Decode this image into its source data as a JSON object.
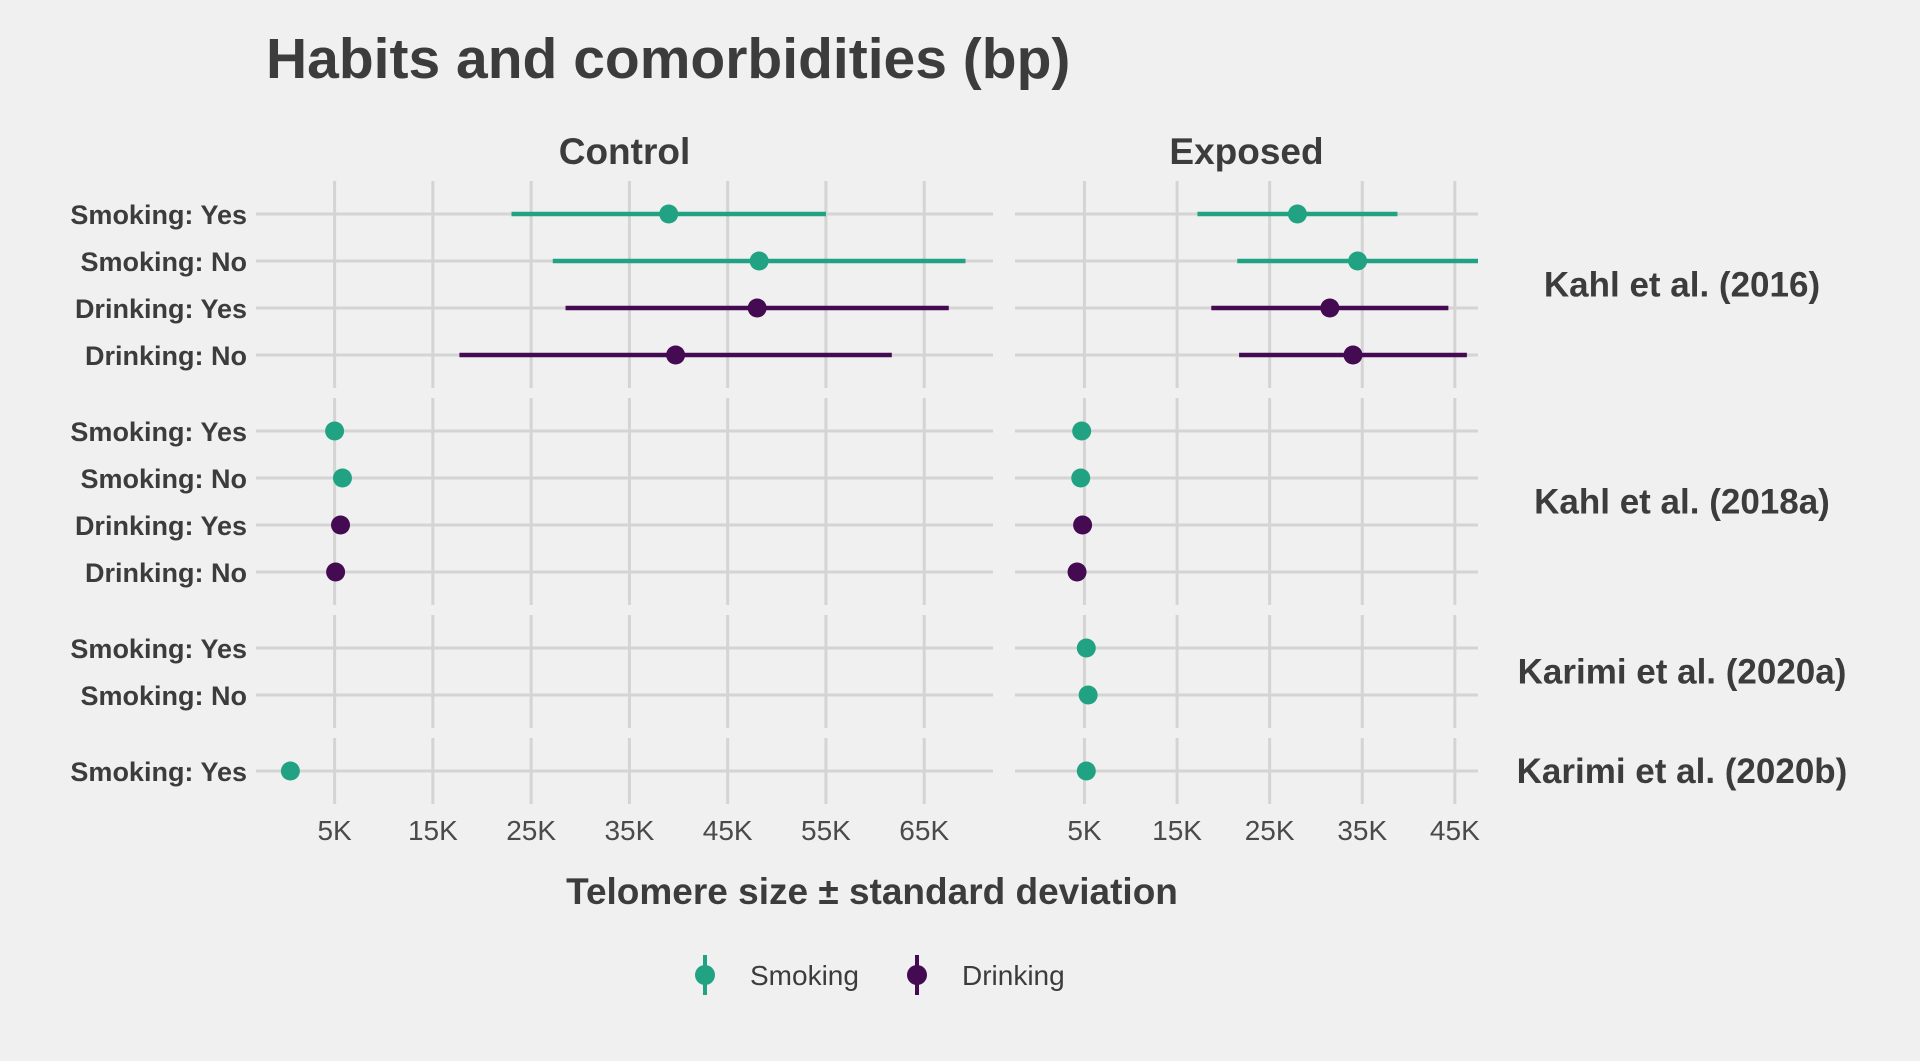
{
  "chart_data": {
    "type": "scatter",
    "subtype": "point-range (dot and whisker), faceted",
    "title": "Habits and comorbidities (bp)",
    "xlabel": "Telomere size ± standard deviation",
    "ylabel": "",
    "column_facets": [
      "Control",
      "Exposed"
    ],
    "row_facets": [
      "Kahl et al. (2016)",
      "Kahl et al. (2018a)",
      "Karimi et al. (2020a)",
      "Karimi et al. (2020b)"
    ],
    "x_ticks": {
      "Control": {
        "values": [
          5000,
          15000,
          25000,
          35000,
          45000,
          55000,
          65000
        ],
        "labels": [
          "5K",
          "15K",
          "25K",
          "35K",
          "45K",
          "55K",
          "65K"
        ]
      },
      "Exposed": {
        "values": [
          5000,
          15000,
          25000,
          35000,
          45000
        ],
        "labels": [
          "5K",
          "15K",
          "25K",
          "35K",
          "45K"
        ]
      }
    },
    "xlim": {
      "Control": [
        -3000,
        72000
      ],
      "Exposed": [
        -2500,
        47500
      ]
    },
    "grid": true,
    "legend": {
      "position": "bottom",
      "entries": [
        {
          "name": "Smoking",
          "color": "#21a383"
        },
        {
          "name": "Drinking",
          "color": "#440a52"
        }
      ]
    },
    "series_colors": {
      "Smoking": "#21a383",
      "Drinking": "#440a52"
    },
    "panels": [
      {
        "study": "Kahl et al. (2016)",
        "categories": [
          "Smoking: Yes",
          "Smoking: No",
          "Drinking: Yes",
          "Drinking: No"
        ],
        "groups": [
          "Smoking",
          "Smoking",
          "Drinking",
          "Drinking"
        ],
        "Control": {
          "mean": [
            39000,
            48200,
            48000,
            39700
          ],
          "sd": [
            16000,
            21000,
            19500,
            22000
          ]
        },
        "Exposed": {
          "mean": [
            28000,
            34500,
            31500,
            34000
          ],
          "sd": [
            10800,
            13000,
            12800,
            12300
          ]
        }
      },
      {
        "study": "Kahl et al. (2018a)",
        "categories": [
          "Smoking: Yes",
          "Smoking: No",
          "Drinking: Yes",
          "Drinking: No"
        ],
        "groups": [
          "Smoking",
          "Smoking",
          "Drinking",
          "Drinking"
        ],
        "Control": {
          "mean": [
            5000,
            5800,
            5600,
            5100
          ],
          "sd": [
            0,
            0,
            0,
            0
          ]
        },
        "Exposed": {
          "mean": [
            4700,
            4600,
            4800,
            4200
          ],
          "sd": [
            0,
            0,
            0,
            0
          ]
        }
      },
      {
        "study": "Karimi et al. (2020a)",
        "categories": [
          "Smoking: Yes",
          "Smoking: No"
        ],
        "groups": [
          "Smoking",
          "Smoking"
        ],
        "Control": {
          "mean": [
            null,
            null
          ],
          "sd": [
            null,
            null
          ]
        },
        "Exposed": {
          "mean": [
            5200,
            5400
          ],
          "sd": [
            0,
            0
          ]
        }
      },
      {
        "study": "Karimi et al. (2020b)",
        "categories": [
          "Smoking: Yes"
        ],
        "groups": [
          "Smoking"
        ],
        "Control": {
          "mean": [
            500
          ],
          "sd": [
            0
          ]
        },
        "Exposed": {
          "mean": [
            5200
          ],
          "sd": [
            0
          ]
        }
      }
    ]
  }
}
